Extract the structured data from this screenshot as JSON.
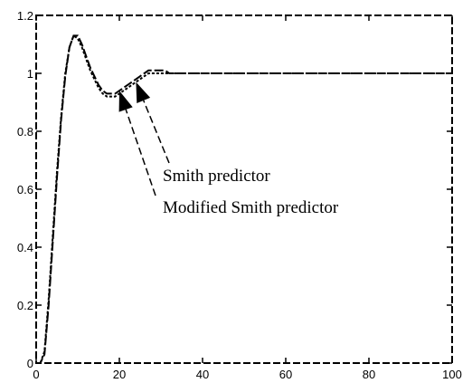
{
  "chart_data": {
    "type": "line",
    "title": "",
    "xlabel": "",
    "ylabel": "",
    "xlim": [
      0,
      100
    ],
    "ylim": [
      0,
      1.2
    ],
    "x_ticks": [
      "0",
      "20",
      "40",
      "60",
      "80",
      "100"
    ],
    "y_ticks": [
      "0",
      "0.2",
      "0.4",
      "0.6",
      "0.8",
      "1",
      "1.2"
    ],
    "grid": false,
    "series": [
      {
        "name": "Smith predictor",
        "x": [
          0,
          1,
          2,
          3,
          4,
          5,
          6,
          7,
          8,
          9,
          10,
          11,
          12,
          13,
          14,
          15,
          16,
          17,
          18,
          19,
          20,
          21,
          22,
          23,
          24,
          25,
          26,
          27,
          28,
          29,
          30,
          31,
          32,
          34,
          36,
          38,
          40,
          45,
          50,
          60,
          70,
          80,
          90,
          100
        ],
        "y": [
          0,
          0,
          0.03,
          0.2,
          0.42,
          0.64,
          0.84,
          0.99,
          1.09,
          1.13,
          1.13,
          1.1,
          1.06,
          1.02,
          0.99,
          0.96,
          0.94,
          0.93,
          0.93,
          0.93,
          0.94,
          0.95,
          0.96,
          0.97,
          0.98,
          0.99,
          1.0,
          1.01,
          1.01,
          1.01,
          1.01,
          1.01,
          1.0,
          1.0,
          1.0,
          1.0,
          1.0,
          1.0,
          1.0,
          1.0,
          1.0,
          1.0,
          1.0,
          1.0
        ]
      },
      {
        "name": "Modified Smith predictor",
        "x": [
          0,
          1,
          2,
          3,
          4,
          5,
          6,
          7,
          8,
          9,
          10,
          11,
          12,
          13,
          14,
          15,
          16,
          17,
          18,
          19,
          20,
          21,
          22,
          23,
          24,
          25,
          26,
          27,
          28,
          29,
          30,
          31,
          32,
          34,
          36,
          38,
          40,
          45,
          50,
          60,
          70,
          80,
          90,
          100
        ],
        "y": [
          0,
          0,
          0.04,
          0.22,
          0.44,
          0.66,
          0.85,
          1.0,
          1.09,
          1.13,
          1.12,
          1.09,
          1.05,
          1.01,
          0.98,
          0.95,
          0.93,
          0.92,
          0.92,
          0.92,
          0.93,
          0.94,
          0.95,
          0.96,
          0.97,
          0.98,
          0.99,
          1.0,
          1.0,
          1.0,
          1.0,
          1.0,
          1.0,
          1.0,
          1.0,
          1.0,
          1.0,
          1.0,
          1.0,
          1.0,
          1.0,
          1.0,
          1.0,
          1.0
        ]
      }
    ],
    "annotations": [
      {
        "text": "Smith predictor",
        "target_x": 24,
        "target_y": 0.97
      },
      {
        "text": "Modified Smith predictor",
        "target_x": 20,
        "target_y": 0.94
      }
    ]
  }
}
